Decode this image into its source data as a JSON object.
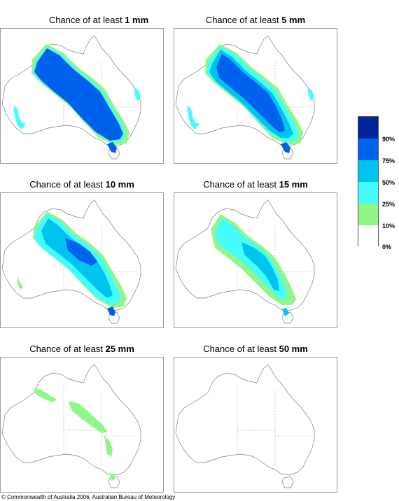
{
  "panels": [
    {
      "prefix": "Chance of at least ",
      "amount": "1 mm"
    },
    {
      "prefix": "Chance of at least ",
      "amount": "5 mm"
    },
    {
      "prefix": "Chance of at least ",
      "amount": "10 mm"
    },
    {
      "prefix": "Chance of at least ",
      "amount": "15 mm"
    },
    {
      "prefix": "Chance of at least ",
      "amount": "25 mm"
    },
    {
      "prefix": "Chance of at least ",
      "amount": "50 mm"
    }
  ],
  "legend": {
    "labels": [
      "90%",
      "75%",
      "50%",
      "25%",
      "10%",
      "0%"
    ],
    "colors": [
      "#00259a",
      "#0061ec",
      "#00c4f0",
      "#44fcfc",
      "#90f68a",
      "#ffffff"
    ]
  },
  "copyright": "© Commonwealth of Australia 2006, Australian Bureau of Meteorology"
}
